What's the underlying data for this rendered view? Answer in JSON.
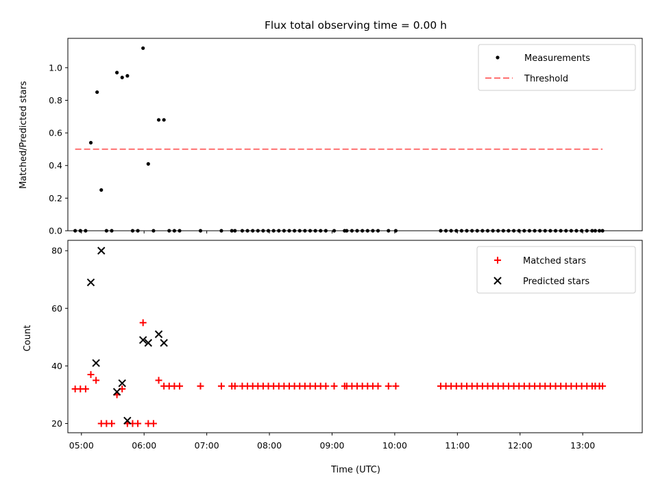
{
  "chart_data": [
    {
      "type": "scatter",
      "title": "Flux total observing time = 0.00 h",
      "xlabel": "",
      "ylabel": "Matched/Predicted stars",
      "ylim": [
        0,
        1.18
      ],
      "yticks": [
        "0.0",
        "0.2",
        "0.4",
        "0.6",
        "0.8",
        "1.0"
      ],
      "xlim": [
        "04:47",
        "13:57"
      ],
      "legend_position": "top-right",
      "series": [
        {
          "name": "Measurements",
          "marker": "dot",
          "color": "#000000",
          "points": [
            [
              "05:09",
              0.54
            ],
            [
              "05:15",
              0.85
            ],
            [
              "05:19",
              0.25
            ],
            [
              "05:34",
              0.97
            ],
            [
              "05:39",
              0.94
            ],
            [
              "05:44",
              0.95
            ],
            [
              "05:59",
              1.12
            ],
            [
              "06:04",
              0.41
            ],
            [
              "06:14",
              0.68
            ],
            [
              "06:19",
              0.68
            ],
            [
              "04:54",
              0
            ],
            [
              "04:59",
              0
            ],
            [
              "05:04",
              0
            ],
            [
              "05:24",
              0
            ],
            [
              "05:29",
              0
            ],
            [
              "05:49",
              0
            ],
            [
              "05:54",
              0
            ],
            [
              "06:09",
              0
            ],
            [
              "06:24",
              0
            ],
            [
              "06:29",
              0
            ],
            [
              "06:34",
              0
            ],
            [
              "06:54",
              0
            ],
            [
              "07:14",
              0
            ],
            [
              "07:24",
              0
            ],
            [
              "07:27",
              0
            ],
            [
              "07:34",
              0
            ],
            [
              "07:39",
              0
            ],
            [
              "07:44",
              0
            ],
            [
              "07:49",
              0
            ],
            [
              "07:54",
              0
            ],
            [
              "07:59",
              0
            ],
            [
              "08:04",
              0
            ],
            [
              "08:09",
              0
            ],
            [
              "08:14",
              0
            ],
            [
              "08:19",
              0
            ],
            [
              "08:24",
              0
            ],
            [
              "08:29",
              0
            ],
            [
              "08:34",
              0
            ],
            [
              "08:39",
              0
            ],
            [
              "08:44",
              0
            ],
            [
              "08:49",
              0
            ],
            [
              "08:54",
              0
            ],
            [
              "09:02",
              0
            ],
            [
              "09:12",
              0
            ],
            [
              "09:14",
              0
            ],
            [
              "09:19",
              0
            ],
            [
              "09:24",
              0
            ],
            [
              "09:29",
              0
            ],
            [
              "09:34",
              0
            ],
            [
              "09:39",
              0
            ],
            [
              "09:44",
              0
            ],
            [
              "09:54",
              0
            ],
            [
              "10:01",
              0
            ],
            [
              "10:44",
              0
            ],
            [
              "10:49",
              0
            ],
            [
              "10:54",
              0
            ],
            [
              "10:59",
              0
            ],
            [
              "11:04",
              0
            ],
            [
              "11:09",
              0
            ],
            [
              "11:14",
              0
            ],
            [
              "11:19",
              0
            ],
            [
              "11:24",
              0
            ],
            [
              "11:29",
              0
            ],
            [
              "11:34",
              0
            ],
            [
              "11:39",
              0
            ],
            [
              "11:44",
              0
            ],
            [
              "11:49",
              0
            ],
            [
              "11:54",
              0
            ],
            [
              "11:59",
              0
            ],
            [
              "12:04",
              0
            ],
            [
              "12:09",
              0
            ],
            [
              "12:14",
              0
            ],
            [
              "12:19",
              0
            ],
            [
              "12:24",
              0
            ],
            [
              "12:29",
              0
            ],
            [
              "12:34",
              0
            ],
            [
              "12:39",
              0
            ],
            [
              "12:44",
              0
            ],
            [
              "12:49",
              0
            ],
            [
              "12:54",
              0
            ],
            [
              "12:59",
              0
            ],
            [
              "13:04",
              0
            ],
            [
              "13:09",
              0
            ],
            [
              "13:12",
              0
            ],
            [
              "13:16",
              0
            ],
            [
              "13:19",
              0
            ]
          ]
        },
        {
          "name": "Threshold",
          "style": "dashed-line",
          "color": "#ff7070",
          "points": [
            [
              "04:54",
              0.5
            ],
            [
              "13:19",
              0.5
            ]
          ]
        }
      ]
    },
    {
      "type": "scatter",
      "title": "",
      "xlabel": "Time (UTC)",
      "ylabel": "Count",
      "ylim": [
        16.8,
        83.6
      ],
      "yticks": [
        "20",
        "40",
        "60",
        "80"
      ],
      "xlim": [
        "04:47",
        "13:57"
      ],
      "xticks": [
        "05:00",
        "06:00",
        "07:00",
        "08:00",
        "09:00",
        "10:00",
        "11:00",
        "12:00",
        "13:00"
      ],
      "legend_position": "top-right",
      "series": [
        {
          "name": "Matched stars",
          "marker": "plus",
          "color": "#ff0000",
          "points": [
            [
              "04:54",
              32
            ],
            [
              "04:59",
              32
            ],
            [
              "05:04",
              32
            ],
            [
              "05:09",
              37
            ],
            [
              "05:14",
              35
            ],
            [
              "05:19",
              20
            ],
            [
              "05:24",
              20
            ],
            [
              "05:29",
              20
            ],
            [
              "05:34",
              30
            ],
            [
              "05:39",
              32
            ],
            [
              "05:44",
              20
            ],
            [
              "05:49",
              20
            ],
            [
              "05:54",
              20
            ],
            [
              "05:59",
              55
            ],
            [
              "06:04",
              20
            ],
            [
              "06:09",
              20
            ],
            [
              "06:14",
              35
            ],
            [
              "06:19",
              33
            ],
            [
              "06:24",
              33
            ],
            [
              "06:29",
              33
            ],
            [
              "06:34",
              33
            ],
            [
              "06:54",
              33
            ],
            [
              "07:14",
              33
            ],
            [
              "07:24",
              33
            ],
            [
              "07:27",
              33
            ],
            [
              "07:34",
              33
            ],
            [
              "07:39",
              33
            ],
            [
              "07:44",
              33
            ],
            [
              "07:49",
              33
            ],
            [
              "07:54",
              33
            ],
            [
              "07:59",
              33
            ],
            [
              "08:04",
              33
            ],
            [
              "08:09",
              33
            ],
            [
              "08:14",
              33
            ],
            [
              "08:19",
              33
            ],
            [
              "08:24",
              33
            ],
            [
              "08:29",
              33
            ],
            [
              "08:34",
              33
            ],
            [
              "08:39",
              33
            ],
            [
              "08:44",
              33
            ],
            [
              "08:49",
              33
            ],
            [
              "08:54",
              33
            ],
            [
              "09:02",
              33
            ],
            [
              "09:12",
              33
            ],
            [
              "09:14",
              33
            ],
            [
              "09:19",
              33
            ],
            [
              "09:24",
              33
            ],
            [
              "09:29",
              33
            ],
            [
              "09:34",
              33
            ],
            [
              "09:39",
              33
            ],
            [
              "09:44",
              33
            ],
            [
              "09:54",
              33
            ],
            [
              "10:01",
              33
            ],
            [
              "10:44",
              33
            ],
            [
              "10:49",
              33
            ],
            [
              "10:54",
              33
            ],
            [
              "10:59",
              33
            ],
            [
              "11:04",
              33
            ],
            [
              "11:09",
              33
            ],
            [
              "11:14",
              33
            ],
            [
              "11:19",
              33
            ],
            [
              "11:24",
              33
            ],
            [
              "11:29",
              33
            ],
            [
              "11:34",
              33
            ],
            [
              "11:39",
              33
            ],
            [
              "11:44",
              33
            ],
            [
              "11:49",
              33
            ],
            [
              "11:54",
              33
            ],
            [
              "11:59",
              33
            ],
            [
              "12:04",
              33
            ],
            [
              "12:09",
              33
            ],
            [
              "12:14",
              33
            ],
            [
              "12:19",
              33
            ],
            [
              "12:24",
              33
            ],
            [
              "12:29",
              33
            ],
            [
              "12:34",
              33
            ],
            [
              "12:39",
              33
            ],
            [
              "12:44",
              33
            ],
            [
              "12:49",
              33
            ],
            [
              "12:54",
              33
            ],
            [
              "12:59",
              33
            ],
            [
              "13:04",
              33
            ],
            [
              "13:09",
              33
            ],
            [
              "13:12",
              33
            ],
            [
              "13:16",
              33
            ],
            [
              "13:19",
              33
            ]
          ]
        },
        {
          "name": "Predicted stars",
          "marker": "x",
          "color": "#000000",
          "points": [
            [
              "05:09",
              69
            ],
            [
              "05:14",
              41
            ],
            [
              "05:19",
              80
            ],
            [
              "05:34",
              31
            ],
            [
              "05:39",
              34
            ],
            [
              "05:44",
              21
            ],
            [
              "05:59",
              49
            ],
            [
              "06:04",
              48
            ],
            [
              "06:14",
              51
            ],
            [
              "06:19",
              48
            ]
          ]
        }
      ]
    }
  ]
}
